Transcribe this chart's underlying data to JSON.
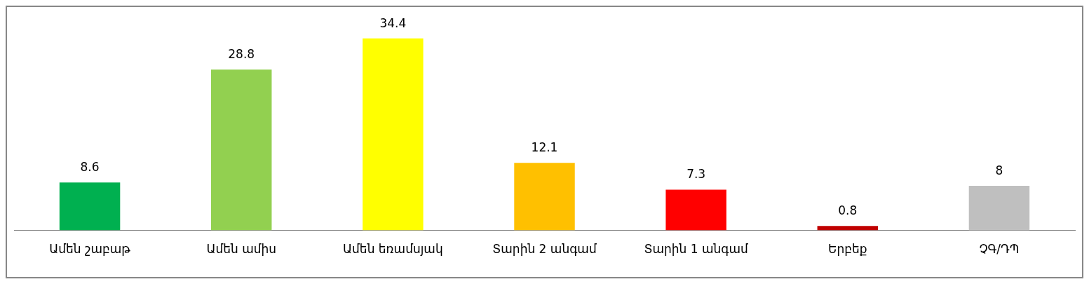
{
  "chart_data": {
    "type": "bar",
    "categories": [
      "Ամեն շաբաթ",
      "Ամեն ամիս",
      "Ամեն եռամսյակ",
      "Տարին 2 անգամ",
      "Տարին 1 անգամ",
      "Երբեք",
      "ՉԳ/ԴՊ"
    ],
    "values": [
      8.6,
      28.8,
      34.4,
      12.1,
      7.3,
      0.8,
      8
    ],
    "colors": [
      "#00b050",
      "#92d050",
      "#ffff00",
      "#ffc000",
      "#ff0000",
      "#c00000",
      "#bfbfbf"
    ],
    "data_labels": true,
    "grid": false,
    "legend": false
  }
}
